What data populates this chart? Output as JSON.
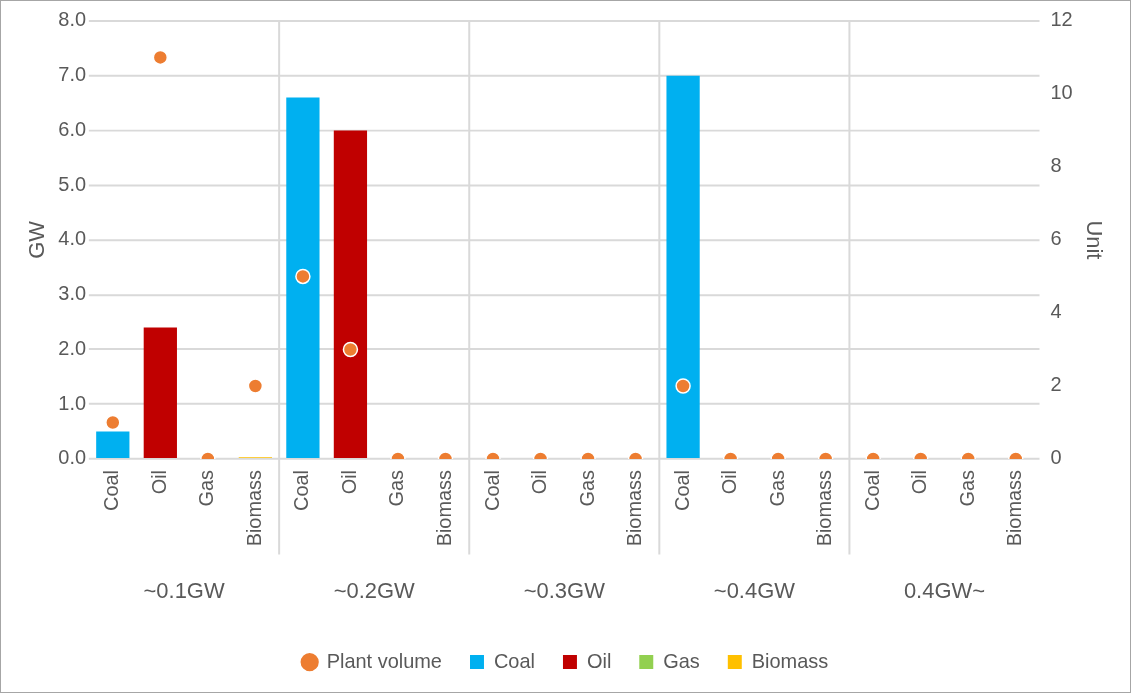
{
  "chart_data": {
    "type": "bar",
    "stacked": true,
    "categories": [
      "Coal",
      "Oil",
      "Gas",
      "Biomass",
      "Coal",
      "Oil",
      "Gas",
      "Biomass",
      "Coal",
      "Oil",
      "Gas",
      "Biomass",
      "Coal",
      "Oil",
      "Gas",
      "Biomass",
      "Coal",
      "Oil",
      "Gas",
      "Biomass"
    ],
    "series": [
      {
        "name": "Coal",
        "color": "#00b0f0",
        "values": [
          0.5,
          null,
          null,
          null,
          6.6,
          null,
          null,
          null,
          null,
          null,
          null,
          null,
          7.0,
          null,
          null,
          null,
          null,
          null,
          null,
          null
        ]
      },
      {
        "name": "Oil",
        "color": "#c00000",
        "values": [
          null,
          2.4,
          null,
          null,
          null,
          6.0,
          null,
          null,
          null,
          null,
          null,
          null,
          null,
          null,
          null,
          null,
          null,
          null,
          null,
          null
        ]
      },
      {
        "name": "Gas",
        "color": "#92d050",
        "values": [
          null,
          null,
          null,
          null,
          null,
          null,
          null,
          null,
          null,
          null,
          null,
          null,
          null,
          null,
          null,
          null,
          null,
          null,
          null,
          null
        ]
      },
      {
        "name": "Biomass",
        "color": "#ffc000",
        "values": [
          null,
          null,
          null,
          0.03,
          null,
          null,
          null,
          null,
          null,
          null,
          null,
          null,
          null,
          null,
          null,
          null,
          null,
          null,
          null,
          null
        ]
      },
      {
        "name": "Plant volume",
        "type": "scatter",
        "axis": "y2",
        "marker": "circle",
        "color": "#ed7d31",
        "values": [
          1,
          11,
          0,
          2,
          5,
          3,
          0,
          0,
          0,
          0,
          0,
          0,
          2,
          0,
          0,
          0,
          0,
          0,
          0,
          0
        ]
      }
    ],
    "annotations": [
      "~0.1GW",
      "~0.2GW",
      "~0.3GW",
      "~0.4GW",
      "0.4GW~"
    ],
    "ylabel": "GW",
    "y2label": "Unit",
    "ylim": [
      0,
      8
    ],
    "yticks": [
      {
        "value": 0,
        "label": "0.0"
      },
      {
        "value": 1,
        "label": "1.0"
      },
      {
        "value": 2,
        "label": "2.0"
      },
      {
        "value": 3,
        "label": "3.0"
      },
      {
        "value": 4,
        "label": "4.0"
      },
      {
        "value": 5,
        "label": "5.0"
      },
      {
        "value": 6,
        "label": "6.0"
      },
      {
        "value": 7,
        "label": "7.0"
      },
      {
        "value": 8,
        "label": "8.0"
      }
    ],
    "y2lim": [
      0,
      12
    ],
    "y2ticks": [
      0,
      2,
      4,
      6,
      8,
      10,
      12
    ],
    "grid": true,
    "legend": "bottom"
  }
}
